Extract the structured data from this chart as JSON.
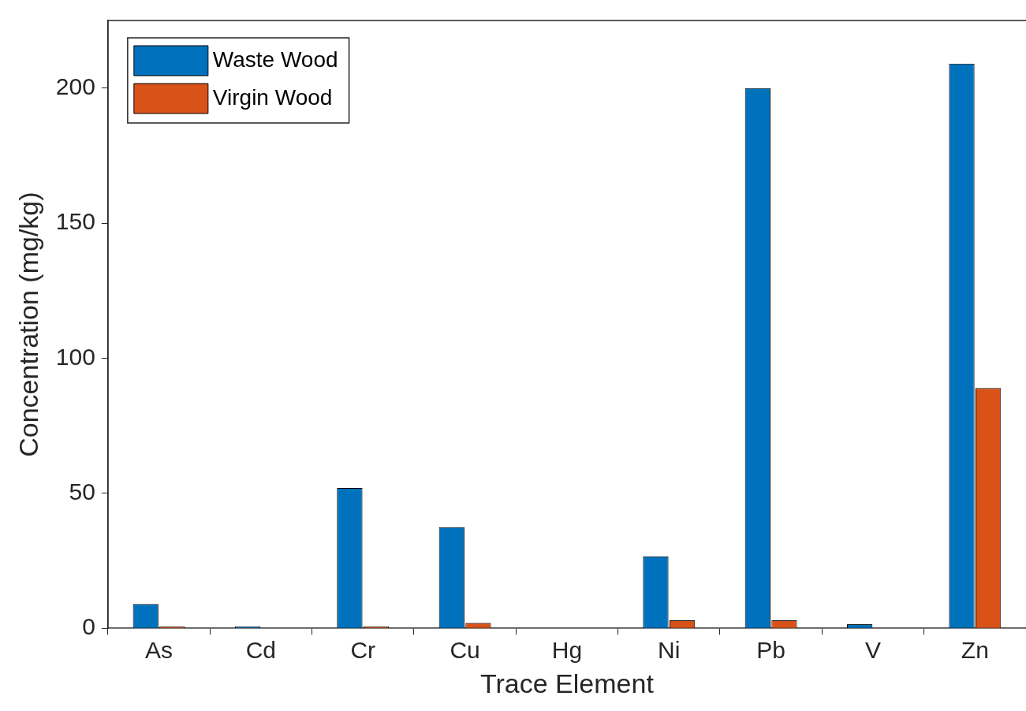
{
  "chart_data": {
    "type": "bar",
    "xlabel": "Trace Element",
    "ylabel": "Concentration (mg/kg)",
    "categories": [
      "As",
      "Cd",
      "Cr",
      "Cu",
      "Hg",
      "Ni",
      "Pb",
      "V",
      "Zn"
    ],
    "series": [
      {
        "name": "Waste Wood",
        "color": "#0072bd",
        "values": [
          9,
          0.8,
          52,
          37.5,
          null,
          26.7,
          200,
          1.5,
          209
        ]
      },
      {
        "name": "Virgin Wood",
        "color": "#d95319",
        "values": [
          0.8,
          0,
          0.8,
          2,
          null,
          3,
          3,
          0,
          89
        ]
      }
    ],
    "ylim": [
      0,
      225
    ],
    "yticks": [
      0,
      50,
      100,
      150,
      200
    ],
    "legend": "top left"
  }
}
